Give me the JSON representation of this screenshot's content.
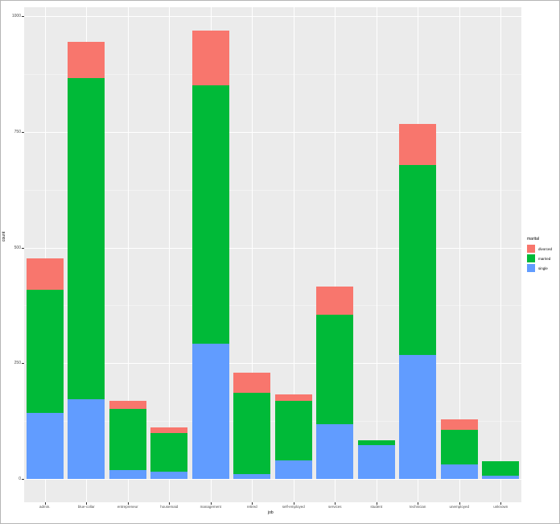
{
  "chart_data": {
    "type": "bar",
    "stacked": true,
    "title": "",
    "xlabel": "job",
    "ylabel": "count",
    "ylim": [
      0,
      1000
    ],
    "yticks": [
      0,
      250,
      500,
      750,
      1000
    ],
    "grid": true,
    "legend_position": "right",
    "legend_title": "marital",
    "categories": [
      "admin.",
      "blue-collar",
      "entrepreneur",
      "housemaid",
      "management",
      "retired",
      "self-employed",
      "services",
      "student",
      "technician",
      "unemployed",
      "unknown"
    ],
    "series": [
      {
        "name": "divorced",
        "color": "#F8766D",
        "values": [
          68,
          78,
          18,
          12,
          119,
          44,
          14,
          61,
          0,
          89,
          23,
          0
        ]
      },
      {
        "name": "married",
        "color": "#00BA38",
        "values": [
          266,
          694,
          132,
          83,
          558,
          176,
          129,
          237,
          10,
          410,
          75,
          31
        ]
      },
      {
        "name": "single",
        "color": "#619CFF",
        "values": [
          143,
          172,
          19,
          16,
          292,
          10,
          40,
          118,
          73,
          268,
          31,
          7
        ]
      }
    ]
  },
  "axes": {
    "x_title": "job",
    "y_title": "count",
    "y_tick_labels": [
      "0",
      "250",
      "500",
      "750",
      "1000"
    ]
  },
  "legend": {
    "title": "marital",
    "items": [
      {
        "label": "divorced",
        "color": "#F8766D"
      },
      {
        "label": "married",
        "color": "#00BA38"
      },
      {
        "label": "single",
        "color": "#619CFF"
      }
    ]
  }
}
